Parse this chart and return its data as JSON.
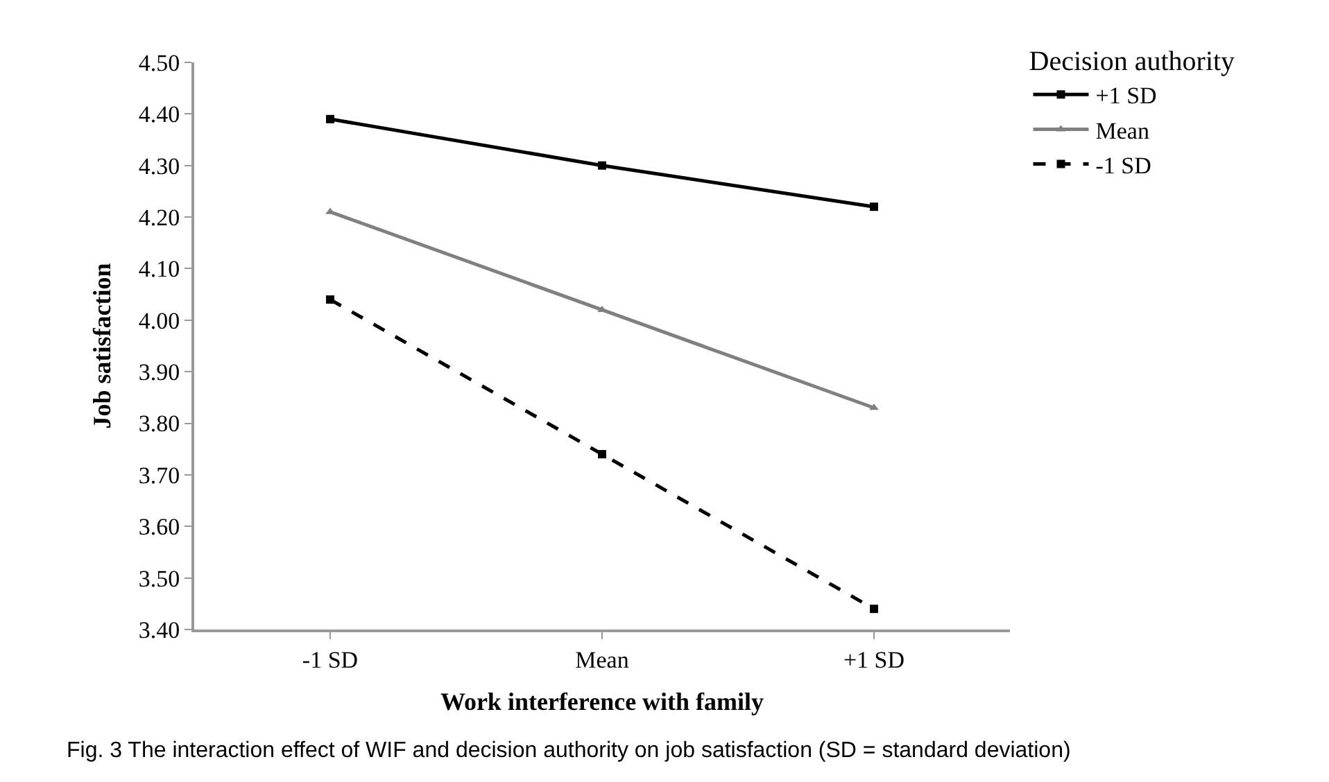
{
  "chart_data": {
    "type": "line",
    "xlabel": "Work interference with family",
    "ylabel": "Job satisfaction",
    "legend_title": "Decision authority",
    "categories": [
      "-1 SD",
      "Mean",
      "+1 SD"
    ],
    "series": [
      {
        "name": "+1 SD",
        "color": "#000000",
        "values": [
          4.39,
          4.3,
          4.22
        ],
        "marker": "square",
        "line_style": "solid"
      },
      {
        "name": "Mean",
        "color": "#808080",
        "values": [
          4.21,
          4.02,
          3.83
        ],
        "marker": "triangle",
        "line_style": "solid"
      },
      {
        "name": "-1 SD",
        "color": "#000000",
        "values": [
          4.04,
          3.74,
          3.44
        ],
        "marker": "square",
        "line_style": "dashed"
      }
    ],
    "ylim": [
      3.4,
      4.5
    ],
    "yticks": [
      {
        "value": 3.4,
        "label": "3.40"
      },
      {
        "value": 3.5,
        "label": "3.50"
      },
      {
        "value": 3.6,
        "label": "3.60"
      },
      {
        "value": 3.7,
        "label": "3.70"
      },
      {
        "value": 3.8,
        "label": "3.80"
      },
      {
        "value": 3.9,
        "label": "3.90"
      },
      {
        "value": 4.0,
        "label": "4.00"
      },
      {
        "value": 4.1,
        "label": "4.10"
      },
      {
        "value": 4.2,
        "label": "4.20"
      },
      {
        "value": 4.3,
        "label": "4.30"
      },
      {
        "value": 4.4,
        "label": "4.40"
      },
      {
        "value": 4.5,
        "label": "4.50"
      }
    ],
    "legend": "top right",
    "annotations": [
      "Fig. 3 The interaction effect of WIF and decision authority on job satisfaction (SD = standard deviation)"
    ]
  }
}
